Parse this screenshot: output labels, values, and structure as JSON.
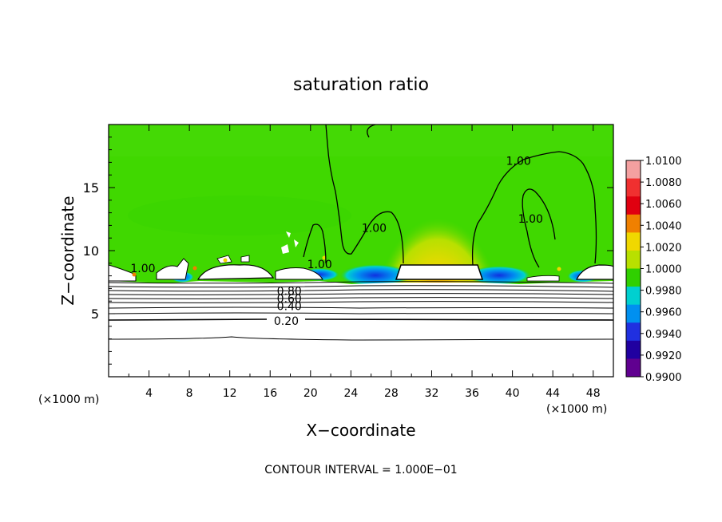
{
  "chart_data": {
    "type": "heatmap",
    "title": "saturation ratio",
    "xlabel": "X−coordinate",
    "ylabel": "Z−coordinate",
    "x_unit_left": "(×1000 m)",
    "x_unit_right": "(×1000 m)",
    "xlim": [
      0,
      50
    ],
    "ylim": [
      0,
      20
    ],
    "x_ticks": [
      4,
      8,
      12,
      16,
      20,
      24,
      28,
      32,
      36,
      40,
      44,
      48
    ],
    "y_ticks": [
      5,
      10,
      15
    ],
    "footer": "CONTOUR INTERVAL = 1.000E−01",
    "colorbar": {
      "levels": [
        1.01,
        1.008,
        1.006,
        1.004,
        1.002,
        1.0,
        0.998,
        0.996,
        0.994,
        0.992,
        0.99
      ],
      "labels": [
        "1.0100",
        "1.0080",
        "1.0060",
        "1.0040",
        "1.0020",
        "1.0000",
        "0.9980",
        "0.9960",
        "0.9940",
        "0.9920",
        "0.9900"
      ],
      "colors": [
        "#f4a0a0",
        "#f03030",
        "#e00010",
        "#f08000",
        "#f0d800",
        "#b8e000",
        "#30d000",
        "#00d0d0",
        "#0090f0",
        "#2030e0",
        "#2000a0",
        "#600090"
      ]
    },
    "contour_labels": [
      {
        "text": "1.00",
        "x": 3.4,
        "z": 8.3
      },
      {
        "text": "1.00",
        "x": 26.3,
        "z": 11.5
      },
      {
        "text": "1.00",
        "x": 20.9,
        "z": 8.6
      },
      {
        "text": "1.00",
        "x": 41.8,
        "z": 12.2
      },
      {
        "text": "1.00",
        "x": 40.6,
        "z": 16.8
      },
      {
        "text": "0.80",
        "x": 17.9,
        "z": 6.5
      },
      {
        "text": "0.60",
        "x": 17.9,
        "z": 5.9
      },
      {
        "text": "0.40",
        "x": 17.9,
        "z": 5.3
      },
      {
        "text": "0.20",
        "x": 17.6,
        "z": 4.1
      }
    ]
  }
}
